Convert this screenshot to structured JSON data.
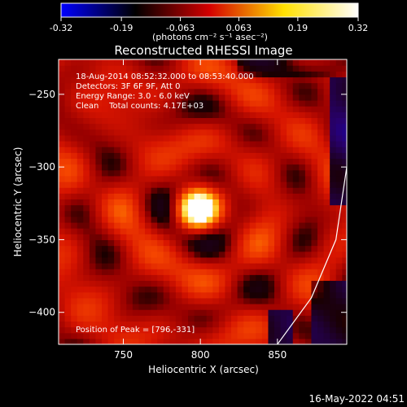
{
  "chart_data": {
    "type": "heatmap",
    "title": "Reconstructed RHESSI Image",
    "xlabel": "Heliocentric X (arcsec)",
    "ylabel": "Heliocentric Y (arcsec)",
    "x_range": [
      708,
      895
    ],
    "y_range": [
      -422,
      -226
    ],
    "x_ticks": [
      750,
      800,
      850
    ],
    "y_ticks": [
      -400,
      -350,
      -300,
      -250
    ],
    "colorbar": {
      "ticks": [
        "-0.32",
        "-0.19",
        "-0.063",
        "0.063",
        "0.19",
        "0.32"
      ],
      "range": [
        -0.32,
        0.32
      ],
      "unit_label": "(photons cm⁻² s⁻¹ asec⁻²)",
      "colors": [
        "#0000ff",
        "#000000",
        "#d40000",
        "#ffe000",
        "#ffffff"
      ]
    },
    "annotations": [
      "18-Aug-2014 08:52:32.000 to 08:53:40.000",
      "Detectors: 3F 6F 9F, Att 0",
      "Energy Range: 3.0 - 6.0 keV",
      "Clean    Total counts: 4.17E+03"
    ],
    "peak_label": "Position of Peak = [796,-331]",
    "peak": {
      "x": 796,
      "y": -331,
      "value": 0.32
    },
    "limb_curve": [
      [
        850,
        -422
      ],
      [
        872,
        -390
      ],
      [
        888,
        -350
      ],
      [
        895,
        -300
      ]
    ],
    "grid": false
  },
  "footer": {
    "date": "16-May-2022 04:51"
  }
}
